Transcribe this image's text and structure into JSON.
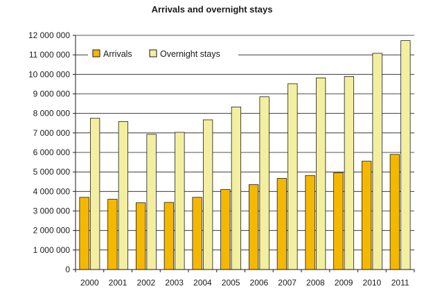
{
  "chart_data": {
    "type": "bar",
    "title": "Arrivals and overnight stays",
    "categories": [
      "2000",
      "2001",
      "2002",
      "2003",
      "2004",
      "2005",
      "2006",
      "2007",
      "2008",
      "2009",
      "2010",
      "2011"
    ],
    "series": [
      {
        "name": "Arrivals",
        "color": "#F5B800",
        "values": [
          3700000,
          3600000,
          3420000,
          3440000,
          3700000,
          4100000,
          4350000,
          4670000,
          4820000,
          4960000,
          5550000,
          5900000
        ]
      },
      {
        "name": "Overnight stays",
        "color": "#F3EFA0",
        "values": [
          7750000,
          7580000,
          6930000,
          7030000,
          7670000,
          8330000,
          8850000,
          9520000,
          9820000,
          9890000,
          11080000,
          11730000
        ]
      }
    ],
    "ylim": [
      0,
      12000000
    ],
    "yticks": [
      0,
      1000000,
      2000000,
      3000000,
      4000000,
      5000000,
      6000000,
      7000000,
      8000000,
      9000000,
      10000000,
      11000000,
      12000000
    ],
    "ytick_labels": [
      "0",
      "1 000 000",
      "2 000 000",
      "3 000 000",
      "4 000 000",
      "5 000 000",
      "6 000 000",
      "7 000 000",
      "8 000 000",
      "9 000 000",
      "10 000 000",
      "11 000 000",
      "12 000 000"
    ],
    "grid": true,
    "legend_position": "top-left"
  }
}
